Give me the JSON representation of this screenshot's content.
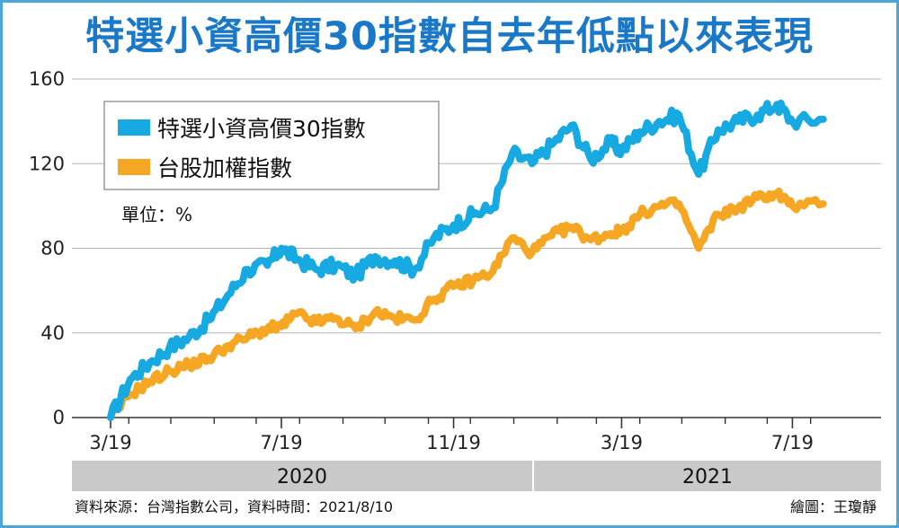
{
  "chart_data": {
    "type": "line",
    "title": "特選小資高價30指數自去年低點以來表現",
    "unit_label": "單位：%",
    "ylim": [
      0,
      160
    ],
    "y_ticks": [
      0,
      40,
      80,
      120,
      160
    ],
    "x_ticks": [
      "3/19",
      "7/19",
      "11/19",
      "3/19",
      "7/19"
    ],
    "years": [
      "2020",
      "2021"
    ],
    "legend_placement": "top-left",
    "grid": true,
    "x": [
      "2020-03-19",
      "2020-04-02",
      "2020-04-16",
      "2020-04-30",
      "2020-05-14",
      "2020-05-28",
      "2020-06-11",
      "2020-06-25",
      "2020-07-09",
      "2020-07-19",
      "2020-07-30",
      "2020-08-13",
      "2020-08-27",
      "2020-09-10",
      "2020-09-24",
      "2020-10-08",
      "2020-10-22",
      "2020-11-05",
      "2020-11-19",
      "2020-12-03",
      "2020-12-17",
      "2020-12-31",
      "2021-01-14",
      "2021-01-28",
      "2021-02-11",
      "2021-02-25",
      "2021-03-11",
      "2021-03-19",
      "2021-04-01",
      "2021-04-15",
      "2021-04-29",
      "2021-05-13",
      "2021-05-27",
      "2021-06-10",
      "2021-06-24",
      "2021-07-08",
      "2021-07-19",
      "2021-08-10"
    ],
    "series": [
      {
        "name": "特選小資高價30指數",
        "color": "#17a9e1",
        "values": [
          0,
          18,
          26,
          33,
          38,
          46,
          58,
          70,
          72,
          80,
          75,
          70,
          72,
          67,
          76,
          74,
          70,
          85,
          91,
          96,
          99,
          125,
          120,
          129,
          138,
          122,
          130,
          126,
          135,
          140,
          143,
          115,
          136,
          140,
          143,
          148,
          140,
          141
        ]
      },
      {
        "name": "台股加權指數",
        "color": "#f5a623",
        "values": [
          0,
          11,
          17,
          22,
          25,
          28,
          34,
          38,
          42,
          43,
          49,
          45,
          47,
          42,
          50,
          47,
          46,
          56,
          62,
          65,
          69,
          85,
          78,
          86,
          90,
          84,
          87,
          88,
          96,
          100,
          101,
          80,
          96,
          99,
          104,
          106,
          100,
          101
        ]
      }
    ]
  },
  "source_note": "資料來源：台灣指數公司，資料時間：2021/8/10",
  "credit_note": "繪圖：王瓊靜"
}
